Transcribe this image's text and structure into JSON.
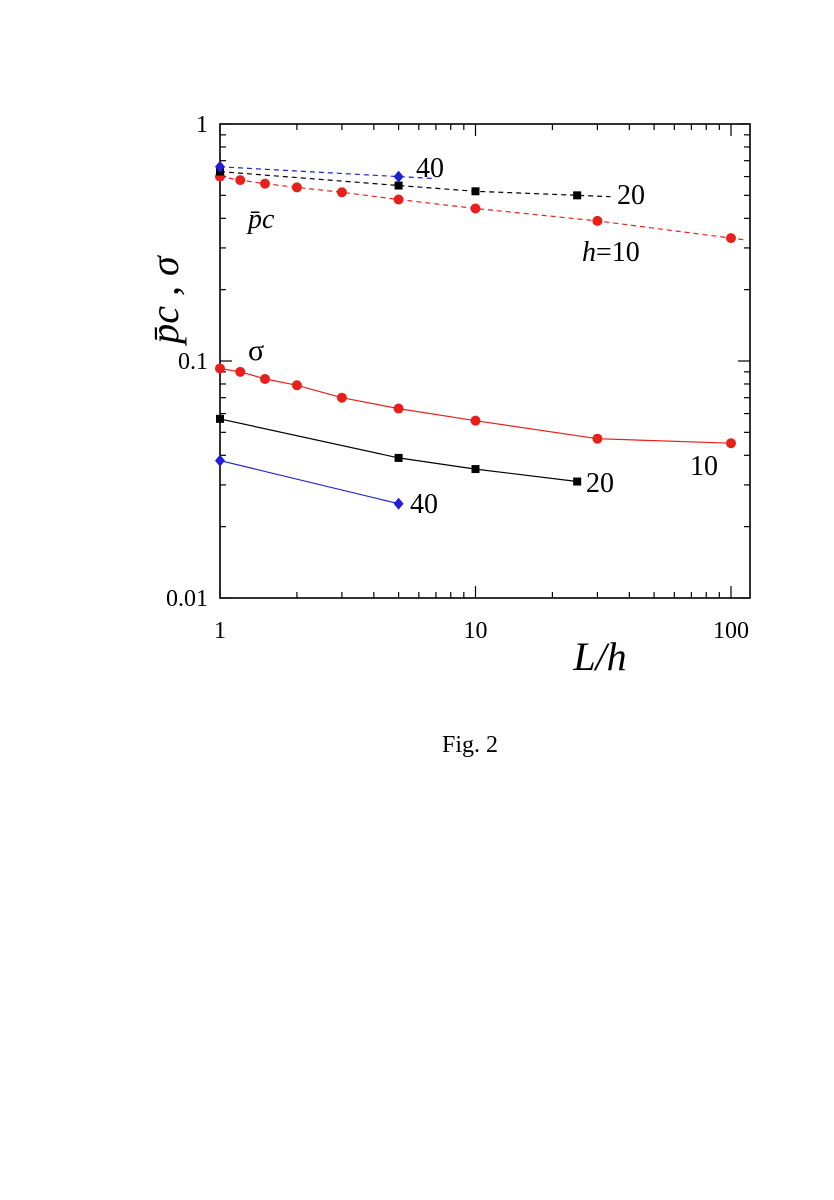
{
  "caption": "Fig. 2",
  "chart_data": {
    "type": "line",
    "xscale": "log",
    "yscale": "log",
    "xlim": [
      1,
      120
    ],
    "ylim": [
      0.01,
      1
    ],
    "xlabel": "L/h",
    "ylabel": "p̄c , σ",
    "xticks": [
      1,
      10,
      100
    ],
    "xtick_labels": [
      "1",
      "10",
      "100"
    ],
    "yticks": [
      0.01,
      0.1,
      1
    ],
    "ytick_labels": [
      "0.01",
      "0.1",
      "1"
    ],
    "grid": false,
    "colors": {
      "h10": "#e8201c",
      "h20": "#000000",
      "h40": "#1f1fd6"
    },
    "series": [
      {
        "group": "pc",
        "h": 10,
        "marker": "circle",
        "dash": true,
        "x": [
          1,
          1.2,
          1.5,
          2,
          3,
          5,
          10,
          30,
          100
        ],
        "y": [
          0.6,
          0.58,
          0.56,
          0.54,
          0.515,
          0.48,
          0.44,
          0.39,
          0.33
        ]
      },
      {
        "group": "pc",
        "h": 20,
        "marker": "square",
        "dash": true,
        "x": [
          1,
          5,
          10,
          25
        ],
        "y": [
          0.63,
          0.55,
          0.52,
          0.5
        ]
      },
      {
        "group": "pc",
        "h": 40,
        "marker": "diamond",
        "dash": true,
        "x": [
          1,
          5
        ],
        "y": [
          0.66,
          0.6
        ]
      },
      {
        "group": "sigma",
        "h": 10,
        "marker": "circle",
        "dash": false,
        "x": [
          1,
          1.2,
          1.5,
          2,
          3,
          5,
          10,
          30,
          100
        ],
        "y": [
          0.093,
          0.09,
          0.084,
          0.079,
          0.07,
          0.063,
          0.056,
          0.047,
          0.045
        ]
      },
      {
        "group": "sigma",
        "h": 20,
        "marker": "square",
        "dash": false,
        "x": [
          1,
          5,
          10,
          25
        ],
        "y": [
          0.057,
          0.039,
          0.035,
          0.031
        ]
      },
      {
        "group": "sigma",
        "h": 40,
        "marker": "diamond",
        "dash": false,
        "x": [
          1,
          5
        ],
        "y": [
          0.038,
          0.025
        ]
      }
    ],
    "annotations": {
      "pc_label": "p̄c",
      "sigma_label": "σ",
      "pc_h10_label_h": "h",
      "pc_h10_label_rest": "=10",
      "pc_h20_label": "20",
      "pc_h40_label": "40",
      "sigma_h10_label": "10",
      "sigma_h20_label": "20",
      "sigma_h40_label": "40"
    }
  }
}
